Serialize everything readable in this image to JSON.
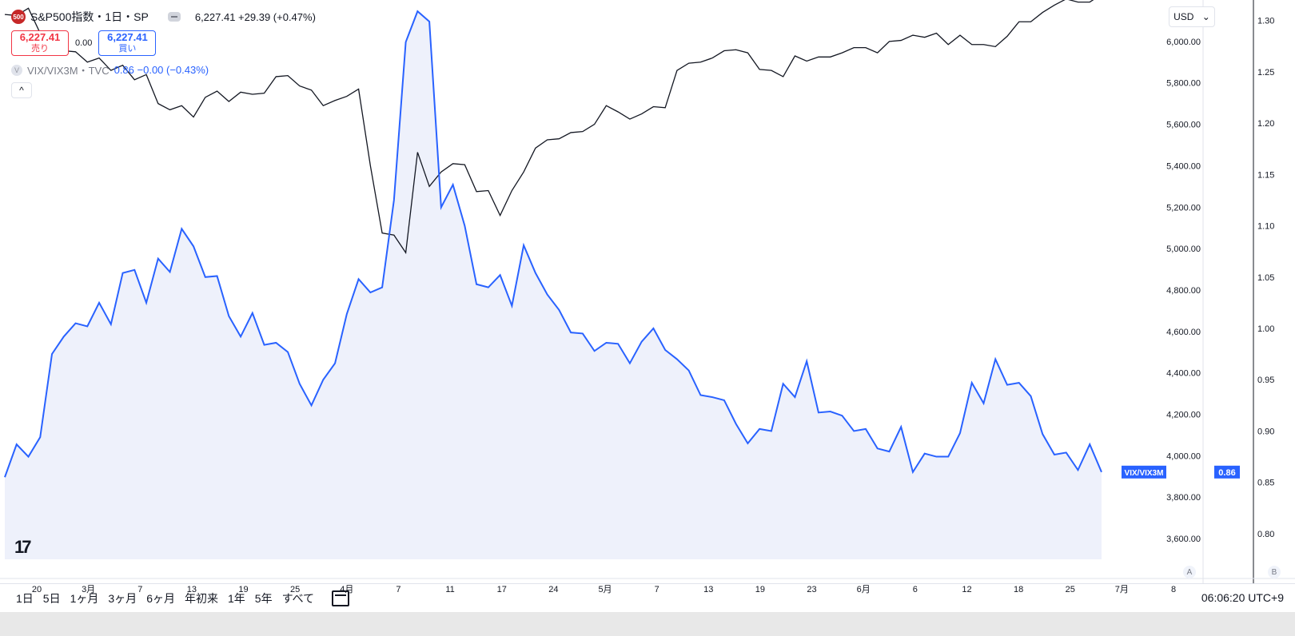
{
  "header": {
    "symbol_badge": "500",
    "symbol_title": "S&P500指数・1日・SP",
    "ohlc": "6,227.41  +29.39 (+0.47%)",
    "sell_price": "6,227.41",
    "sell_label": "売り",
    "spread": "0.00",
    "buy_price": "6,227.41",
    "buy_label": "買い",
    "vix_icon": "V",
    "vix_title": "VIX/VIX3M・TVC",
    "vix_values": "0.86  −0.00 (−0.43%)",
    "collapse_icon": "^"
  },
  "currency": "USD",
  "currency_arrow": "⌄",
  "scale_labels": {
    "a": "A",
    "b": "B"
  },
  "range_buttons": [
    "1日",
    "5日",
    "1ヶ月",
    "3ヶ月",
    "6ヶ月",
    "年初来",
    "1年",
    "5年",
    "すべて"
  ],
  "clock": "06:06:20 UTC+9",
  "logo": "17",
  "colors": {
    "spx_line": "#131722",
    "vix_line": "#2962ff",
    "vix_fill": "#eef1fb",
    "sell": "#f23645",
    "buy": "#2962ff"
  },
  "chart_data": {
    "type": "line",
    "x_tick_labels": [
      "20",
      "3月",
      "7",
      "13",
      "19",
      "25",
      "4月",
      "7",
      "11",
      "17",
      "24",
      "5月",
      "7",
      "13",
      "19",
      "23",
      "6月",
      "6",
      "12",
      "18",
      "25",
      "7月",
      "8"
    ],
    "left_axis_ticks": [
      "6,000.00",
      "5,800.00",
      "5,600.00",
      "5,400.00",
      "5,200.00",
      "5,000.00",
      "4,800.00",
      "4,600.00",
      "4,400.00",
      "4,200.00",
      "4,000.00",
      "3,800.00",
      "3,600.00"
    ],
    "right_axis_ticks": [
      "1.30",
      "1.25",
      "1.20",
      "1.15",
      "1.10",
      "1.05",
      "1.00",
      "0.95",
      "0.90",
      "0.85",
      "0.80"
    ],
    "price_ylim": [
      3500,
      6200
    ],
    "ratio_ylim": [
      0.775,
      1.32
    ],
    "series": [
      {
        "name": "S&P500指数",
        "axis": "price",
        "values": [
          6130,
          6125,
          6160,
          6040,
          6010,
          5955,
          5950,
          5900,
          5920,
          5860,
          5885,
          5815,
          5840,
          5700,
          5670,
          5690,
          5635,
          5730,
          5760,
          5710,
          5755,
          5745,
          5750,
          5830,
          5835,
          5785,
          5765,
          5690,
          5715,
          5735,
          5770,
          5400,
          5075,
          5065,
          4980,
          5465,
          5300,
          5370,
          5410,
          5405,
          5275,
          5280,
          5160,
          5280,
          5370,
          5485,
          5525,
          5530,
          5560,
          5565,
          5600,
          5690,
          5660,
          5625,
          5650,
          5685,
          5680,
          5860,
          5895,
          5900,
          5920,
          5955,
          5960,
          5945,
          5865,
          5860,
          5830,
          5930,
          5905,
          5925,
          5925,
          5945,
          5970,
          5970,
          5945,
          6000,
          6005,
          6030,
          6020,
          6040,
          5985,
          6030,
          5985,
          5985,
          5975,
          6025,
          6095,
          6095,
          6140,
          6175,
          6205,
          6190,
          6190,
          6227.41
        ]
      },
      {
        "name": "VIX/VIX3M",
        "axis": "ratio",
        "values": [
          0.855,
          0.887,
          0.875,
          0.894,
          0.975,
          0.992,
          1.005,
          1.002,
          1.025,
          1.004,
          1.054,
          1.057,
          1.025,
          1.068,
          1.055,
          1.097,
          1.08,
          1.05,
          1.051,
          1.012,
          0.992,
          1.015,
          0.984,
          0.986,
          0.977,
          0.946,
          0.925,
          0.95,
          0.966,
          1.014,
          1.048,
          1.035,
          1.04,
          1.125,
          1.279,
          1.309,
          1.299,
          1.118,
          1.14,
          1.1,
          1.043,
          1.04,
          1.052,
          1.022,
          1.081,
          1.054,
          1.033,
          1.018,
          0.996,
          0.995,
          0.978,
          0.986,
          0.985,
          0.966,
          0.987,
          1.0,
          0.979,
          0.97,
          0.959,
          0.935,
          0.933,
          0.93,
          0.907,
          0.888,
          0.902,
          0.9,
          0.946,
          0.933,
          0.968,
          0.918,
          0.919,
          0.915,
          0.9,
          0.902,
          0.883,
          0.88,
          0.904,
          0.86,
          0.878,
          0.875,
          0.875,
          0.898,
          0.947,
          0.927,
          0.97,
          0.945,
          0.947,
          0.934,
          0.897,
          0.877,
          0.879,
          0.862,
          0.887,
          0.86
        ]
      }
    ],
    "last_value_labels": {
      "series_tag": "VIX/VIX3M",
      "value": "0.86"
    },
    "grid": false
  }
}
